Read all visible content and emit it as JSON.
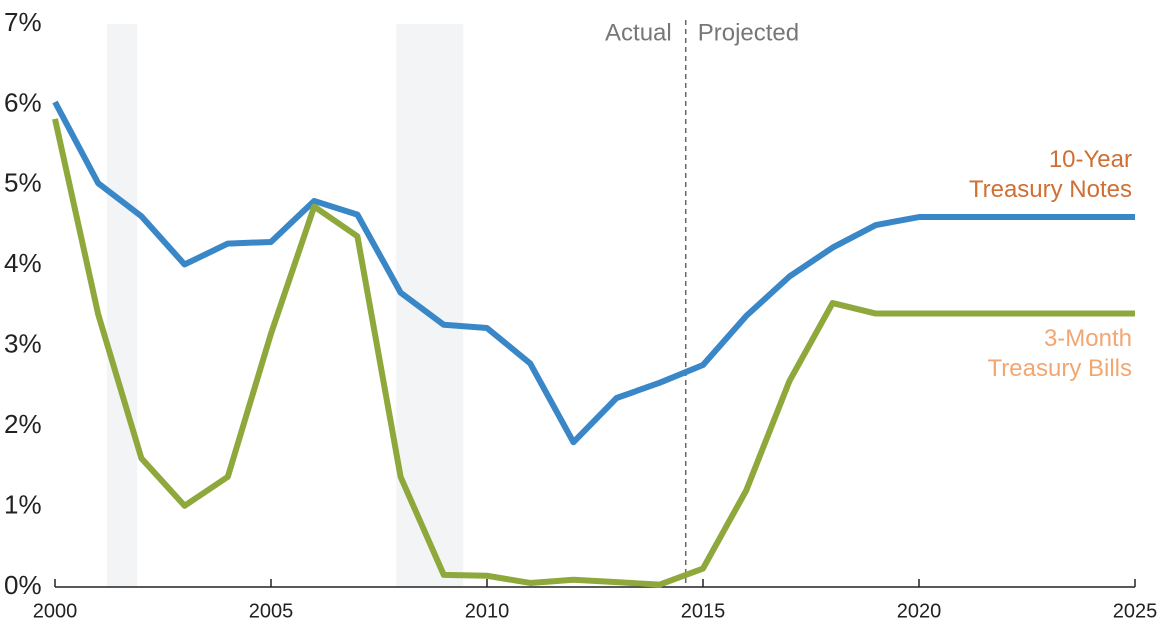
{
  "chart_data": {
    "type": "line",
    "x": [
      2000,
      2001,
      2002,
      2003,
      2004,
      2005,
      2006,
      2007,
      2008,
      2009,
      2010,
      2011,
      2012,
      2013,
      2014,
      2015,
      2016,
      2017,
      2018,
      2019,
      2020,
      2021,
      2022,
      2023,
      2024,
      2025
    ],
    "series": [
      {
        "name": "10-Year Treasury Notes",
        "color": "#3a87c8",
        "label_color": "#cf6f33",
        "values": [
          6.03,
          5.02,
          4.61,
          4.01,
          4.27,
          4.29,
          4.8,
          4.63,
          3.66,
          3.26,
          3.22,
          2.78,
          1.8,
          2.35,
          2.54,
          2.76,
          3.37,
          3.86,
          4.22,
          4.5,
          4.6,
          4.6,
          4.6,
          4.6,
          4.6,
          4.6
        ]
      },
      {
        "name": "3-Month Treasury Bills",
        "color": "#8ea83b",
        "label_color": "#f2a772",
        "values": [
          5.82,
          3.39,
          1.6,
          1.01,
          1.37,
          3.15,
          4.73,
          4.36,
          1.37,
          0.15,
          0.14,
          0.05,
          0.09,
          0.06,
          0.03,
          0.23,
          1.2,
          2.56,
          3.53,
          3.4,
          3.4,
          3.4,
          3.4,
          3.4,
          3.4,
          3.4
        ]
      }
    ],
    "xlim": [
      2000,
      2025
    ],
    "xticks": [
      2000,
      2005,
      2010,
      2015,
      2020,
      2025
    ],
    "ylim": [
      0,
      7
    ],
    "yticks": [
      {
        "value": 0,
        "label": "0%"
      },
      {
        "value": 1,
        "label": "1%"
      },
      {
        "value": 2,
        "label": "2%"
      },
      {
        "value": 3,
        "label": "3%"
      },
      {
        "value": 4,
        "label": "4%"
      },
      {
        "value": 5,
        "label": "5%"
      },
      {
        "value": 6,
        "label": "6%"
      },
      {
        "value": 7,
        "label": "7%"
      }
    ],
    "shaded_ranges": [
      [
        2001.2,
        2001.9
      ],
      [
        2007.9,
        2009.45
      ]
    ],
    "divider": {
      "x": 2014.6,
      "left_label": "Actual",
      "right_label": "Projected"
    }
  }
}
